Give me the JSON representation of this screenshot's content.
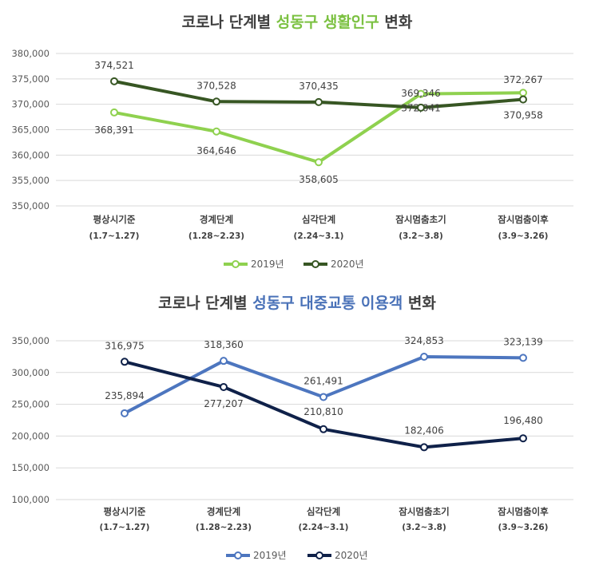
{
  "chart_data": [
    {
      "type": "line",
      "title_parts": [
        {
          "text": "코로나 단계별 ",
          "color": "#404040"
        },
        {
          "text": "성동구 생활인구",
          "color": "#7cc142"
        },
        {
          "text": " 변화",
          "color": "#404040"
        }
      ],
      "categories": [
        "평상시기준",
        "경계단계",
        "심각단계",
        "잠시멈춤초기",
        "잠시멈춤이후"
      ],
      "category_periods": [
        "(1.7~1.27)",
        "(1.28~2.23)",
        "(2.24~3.1)",
        "(3.2~3.8)",
        "(3.9~3.26)"
      ],
      "ylim": [
        350000,
        380000
      ],
      "yticks": [
        350000,
        355000,
        360000,
        365000,
        370000,
        375000,
        380000
      ],
      "ytick_labels": [
        "350,000",
        "355,000",
        "360,000",
        "365,000",
        "370,000",
        "375,000",
        "380,000"
      ],
      "grid": true,
      "legend_position": "bottom",
      "series": [
        {
          "name": "2019년",
          "color": "#8fd14f",
          "values": [
            368391,
            364646,
            358605,
            372041,
            372267
          ],
          "labels": [
            "368,391",
            "364,646",
            "358,605",
            "372,041",
            "372,267"
          ]
        },
        {
          "name": "2020년",
          "color": "#375623",
          "values": [
            374521,
            370528,
            370435,
            369346,
            370958
          ],
          "labels": [
            "374,521",
            "370,528",
            "370,435",
            "369,346",
            "370,958"
          ]
        }
      ]
    },
    {
      "type": "line",
      "title_parts": [
        {
          "text": "코로나 단계별 ",
          "color": "#404040"
        },
        {
          "text": "성동구 대중교통 이용객",
          "color": "#4a72b8"
        },
        {
          "text": " 변화",
          "color": "#404040"
        }
      ],
      "categories": [
        "평상시기준",
        "경계단계",
        "심각단계",
        "잠시멈춤초기",
        "잠시멈춤이후"
      ],
      "category_periods": [
        "(1.7~1.27)",
        "(1.28~2.23)",
        "(2.24~3.1)",
        "(3.2~3.8)",
        "(3.9~3.26)"
      ],
      "ylim": [
        100000,
        350000
      ],
      "yticks": [
        100000,
        150000,
        200000,
        250000,
        300000,
        350000
      ],
      "ytick_labels": [
        "100,000",
        "150,000",
        "200,000",
        "250,000",
        "300,000",
        "350,000"
      ],
      "grid": true,
      "legend_position": "bottom",
      "series": [
        {
          "name": "2019년",
          "color": "#4d76bf",
          "values": [
            235894,
            318360,
            261491,
            324853,
            323139
          ],
          "labels": [
            "235,894",
            "318,360",
            "261,491",
            "324,853",
            "323,139"
          ]
        },
        {
          "name": "2020년",
          "color": "#0f2149",
          "values": [
            316975,
            277207,
            210810,
            182406,
            196480
          ],
          "labels": [
            "316,975",
            "277,207",
            "210,810",
            "182,406",
            "196,480"
          ]
        }
      ]
    }
  ]
}
